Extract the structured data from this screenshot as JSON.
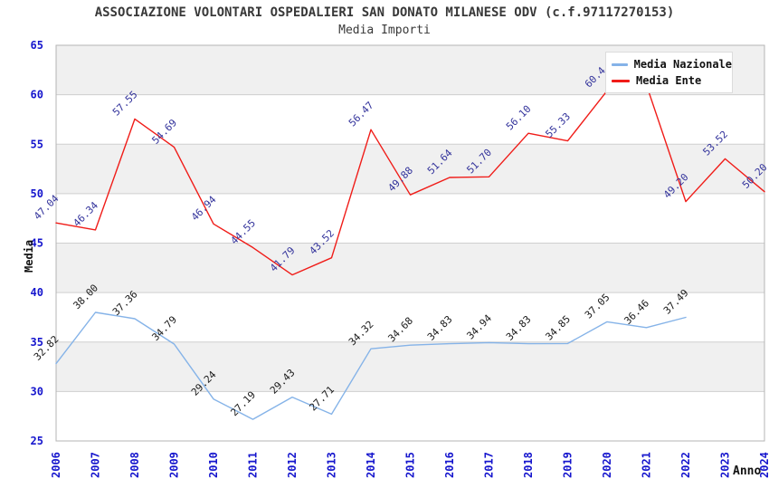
{
  "chart": {
    "title": "ASSOCIAZIONE VOLONTARI OSPEDALIERI SAN DONATO MILANESE ODV (c.f.97117270153)",
    "subtitle": "Media Importi",
    "legend": {
      "items": [
        {
          "label": "Media Nazionale",
          "color": "#85b3e8"
        },
        {
          "label": "Media Ente",
          "color": "#f01c18"
        }
      ]
    }
  },
  "chart_data": {
    "type": "line",
    "title": "ASSOCIAZIONE VOLONTARI OSPEDALIERI SAN DONATO MILANESE ODV (c.f.97117270153)",
    "subtitle": "Media Importi",
    "xlabel": "Anno",
    "ylabel": "Media",
    "x": [
      2006,
      2007,
      2008,
      2009,
      2010,
      2011,
      2012,
      2013,
      2014,
      2015,
      2016,
      2017,
      2018,
      2019,
      2020,
      2021,
      2022,
      2023,
      2024
    ],
    "ylim": [
      25,
      65
    ],
    "ytick_step": 5,
    "grid": true,
    "legend_position": "top-right",
    "band_colors": {
      "even": "#f0f0f0",
      "odd": "#ffffff"
    },
    "axis_tick_color": "#1515cd",
    "grid_color": "#cfcfcf",
    "border_color": "#b5b5b5",
    "series": [
      {
        "name": "Media Nazionale",
        "color": "#85b3e8",
        "label_color": "#1a1a1a",
        "values": [
          32.82,
          38.0,
          37.36,
          34.79,
          29.24,
          27.19,
          29.43,
          27.71,
          34.32,
          34.68,
          34.83,
          34.94,
          34.83,
          34.85,
          37.05,
          36.46,
          37.49,
          null,
          null
        ],
        "labels": [
          "32.82",
          "38.00",
          "37.36",
          "34.79",
          "29.24",
          "27.19",
          "29.43",
          "27.71",
          "34.32",
          "34.68",
          "34.83",
          "34.94",
          "34.83",
          "34.85",
          "37.05",
          "36.46",
          "37.49",
          "",
          ""
        ]
      },
      {
        "name": "Media Ente",
        "color": "#f01c18",
        "label_color": "#32329b",
        "values": [
          47.04,
          46.34,
          57.55,
          54.69,
          46.94,
          44.55,
          41.79,
          43.52,
          56.47,
          49.88,
          51.64,
          51.7,
          56.1,
          55.33,
          60.4,
          61.0,
          49.2,
          53.52,
          50.2
        ],
        "labels": [
          "47.04",
          "46.34",
          "57.55",
          "54.69",
          "46.94",
          "44.55",
          "41.79",
          "43.52",
          "56.47",
          "49.88",
          "51.64",
          "51.70",
          "56.10",
          "55.33",
          "60.4",
          "",
          "49.20",
          "53.52",
          "50.20"
        ]
      }
    ]
  }
}
